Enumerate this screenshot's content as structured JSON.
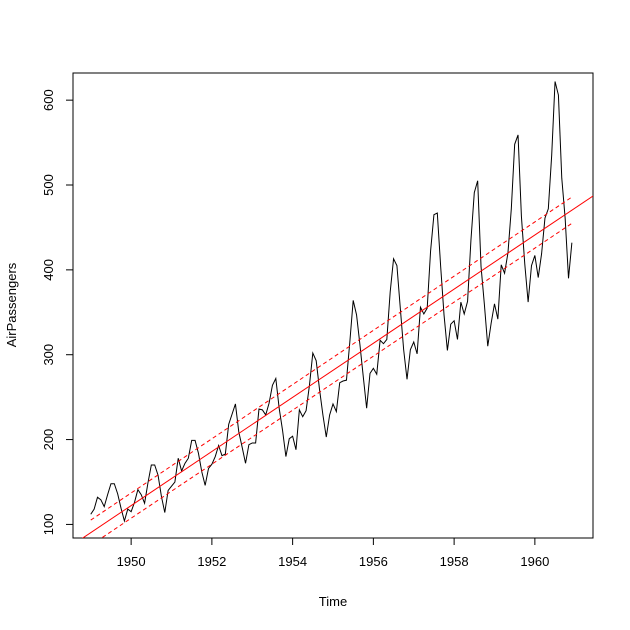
{
  "chart_data": {
    "type": "line",
    "title": "",
    "xlabel": "Time",
    "ylabel": "AirPassengers",
    "xlim": [
      1948.56,
      1961.44
    ],
    "ylim": [
      84,
      632
    ],
    "x_ticks": [
      1950,
      1952,
      1954,
      1956,
      1958,
      1960
    ],
    "y_ticks": [
      100,
      200,
      300,
      400,
      500,
      600
    ],
    "x_tick_labels": [
      "1950",
      "1952",
      "1954",
      "1956",
      "1958",
      "1960"
    ],
    "y_tick_labels": [
      "100",
      "200",
      "300",
      "400",
      "500",
      "600"
    ],
    "grid": false,
    "colors": {
      "series": "#000000",
      "fit": "#ff0000",
      "axis": "#000000"
    },
    "series": [
      {
        "start": 1949,
        "frequency": 12,
        "values": [
          112,
          118,
          132,
          129,
          121,
          135,
          148,
          148,
          136,
          119,
          104,
          118,
          115,
          126,
          141,
          135,
          125,
          149,
          170,
          170,
          158,
          133,
          114,
          140,
          145,
          150,
          178,
          163,
          172,
          178,
          199,
          199,
          184,
          162,
          146,
          166,
          171,
          180,
          193,
          181,
          183,
          218,
          230,
          242,
          209,
          191,
          172,
          194,
          196,
          196,
          236,
          235,
          229,
          243,
          264,
          272,
          237,
          211,
          180,
          201,
          204,
          188,
          235,
          227,
          234,
          264,
          302,
          293,
          259,
          229,
          203,
          229,
          242,
          233,
          267,
          269,
          270,
          315,
          364,
          347,
          312,
          274,
          237,
          278,
          284,
          277,
          317,
          313,
          318,
          374,
          413,
          405,
          355,
          306,
          271,
          306,
          315,
          301,
          356,
          348,
          355,
          422,
          465,
          467,
          404,
          347,
          305,
          336,
          340,
          318,
          362,
          348,
          363,
          435,
          491,
          505,
          404,
          359,
          310,
          337,
          360,
          342,
          406,
          396,
          420,
          472,
          548,
          559,
          463,
          407,
          362,
          405,
          417,
          391,
          419,
          461,
          472,
          535,
          622,
          606,
          508,
          461,
          390,
          432
        ]
      }
    ],
    "fit_line": {
      "intercept": -62055.5,
      "slope": 31.886
    },
    "fit_band": {
      "x_range": [
        1949,
        1960.917
      ],
      "halfwidth": [
        14.8,
        15.5
      ]
    }
  }
}
